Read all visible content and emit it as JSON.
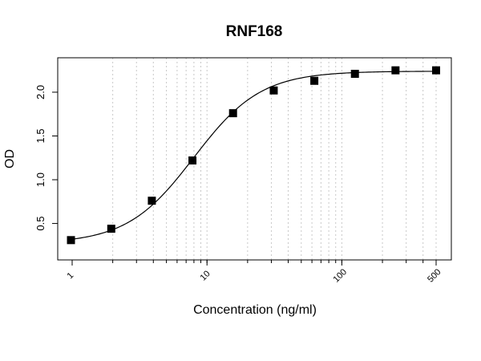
{
  "chart_data": {
    "type": "scatter",
    "title": "RNF168",
    "xlabel": "Concentration (ng/ml)",
    "ylabel": "OD",
    "x_scale": "log",
    "xlim": [
      1,
      500
    ],
    "ylim": [
      0.3,
      2.3
    ],
    "x_ticks": [
      {
        "value": 1,
        "label": "1"
      },
      {
        "value": 10,
        "label": "10"
      },
      {
        "value": 100,
        "label": "100"
      },
      {
        "value": 500,
        "label": "500"
      }
    ],
    "y_ticks": [
      {
        "value": 0.5,
        "label": "0.5"
      },
      {
        "value": 1.0,
        "label": "1.0"
      },
      {
        "value": 1.5,
        "label": "1.5"
      },
      {
        "value": 2.0,
        "label": "2.0"
      }
    ],
    "grid": "vertical dotted (log minor)",
    "series": [
      {
        "marker": "filled-square",
        "x": [
          0.98,
          1.95,
          3.9,
          7.8,
          15.6,
          31.25,
          62.5,
          125,
          250,
          500
        ],
        "y": [
          0.31,
          0.44,
          0.76,
          1.22,
          1.76,
          2.02,
          2.13,
          2.21,
          2.25,
          2.25
        ]
      }
    ],
    "fit_curve": {
      "type": "4PL",
      "bottom": 0.27,
      "top": 2.24,
      "ec50": 8.0,
      "hill": 1.75
    }
  }
}
